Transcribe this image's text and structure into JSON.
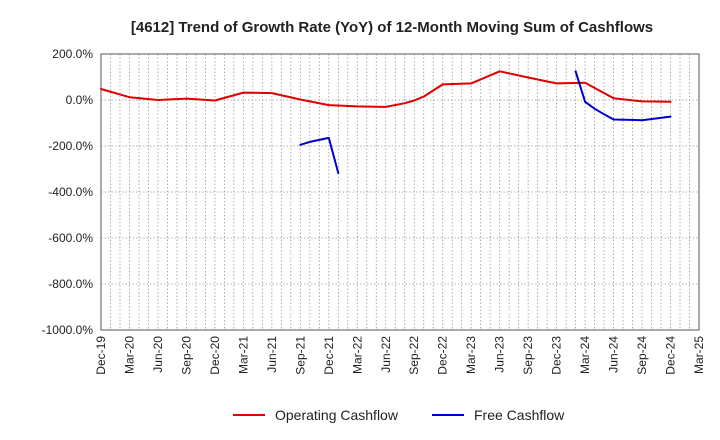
{
  "chart_data": {
    "type": "line",
    "title": "[4612]  Trend of Growth Rate (YoY) of 12-Month Moving Sum of Cashflows",
    "xlabel": "",
    "ylabel": "",
    "ylim": [
      -1000,
      200
    ],
    "yticks": [
      200,
      0,
      -200,
      -400,
      -600,
      -800,
      -1000
    ],
    "ytick_labels": [
      "200.0%",
      "0.0%",
      "-200.0%",
      "-400.0%",
      "-600.0%",
      "-800.0%",
      "-1000.0%"
    ],
    "x_categories": [
      "Dec-19",
      "Jan-20",
      "Feb-20",
      "Mar-20",
      "Apr-20",
      "May-20",
      "Jun-20",
      "Jul-20",
      "Aug-20",
      "Sep-20",
      "Oct-20",
      "Nov-20",
      "Dec-20",
      "Jan-21",
      "Feb-21",
      "Mar-21",
      "Apr-21",
      "May-21",
      "Jun-21",
      "Jul-21",
      "Aug-21",
      "Sep-21",
      "Oct-21",
      "Nov-21",
      "Dec-21",
      "Jan-22",
      "Feb-22",
      "Mar-22",
      "Apr-22",
      "May-22",
      "Jun-22",
      "Jul-22",
      "Aug-22",
      "Sep-22",
      "Oct-22",
      "Nov-22",
      "Dec-22",
      "Jan-23",
      "Feb-23",
      "Mar-23",
      "Apr-23",
      "May-23",
      "Jun-23",
      "Jul-23",
      "Aug-23",
      "Sep-23",
      "Oct-23",
      "Nov-23",
      "Dec-23",
      "Jan-24",
      "Feb-24",
      "Mar-24",
      "Apr-24",
      "May-24",
      "Jun-24",
      "Jul-24",
      "Aug-24",
      "Sep-24",
      "Oct-24",
      "Nov-24",
      "Dec-24",
      "Jan-25",
      "Feb-25",
      "Mar-25"
    ],
    "x_tick_labels": [
      "Dec-19",
      "Mar-20",
      "Jun-20",
      "Sep-20",
      "Dec-20",
      "Mar-21",
      "Jun-21",
      "Sep-21",
      "Dec-21",
      "Mar-22",
      "Jun-22",
      "Sep-22",
      "Dec-22",
      "Mar-23",
      "Jun-23",
      "Sep-23",
      "Dec-23",
      "Mar-24",
      "Jun-24",
      "Sep-24",
      "Dec-24",
      "Mar-25"
    ],
    "grid": true,
    "legend_position": "bottom-center",
    "series": [
      {
        "name": "Operating Cashflow",
        "color": "#e00000",
        "points": [
          [
            "Dec-19",
            48
          ],
          [
            "Mar-20",
            12
          ],
          [
            "Jun-20",
            0
          ],
          [
            "Sep-20",
            6
          ],
          [
            "Dec-20",
            -2
          ],
          [
            "Mar-21",
            32
          ],
          [
            "Jun-21",
            30
          ],
          [
            "Sep-21",
            2
          ],
          [
            "Dec-21",
            -22
          ],
          [
            "Mar-22",
            -28
          ],
          [
            "Jun-22",
            -30
          ],
          [
            "Aug-22",
            -14
          ],
          [
            "Sep-22",
            -2
          ],
          [
            "Oct-22",
            15
          ],
          [
            "Dec-22",
            68
          ],
          [
            "Mar-23",
            72
          ],
          [
            "Jun-23",
            125
          ],
          [
            "Sep-23",
            98
          ],
          [
            "Dec-23",
            72
          ],
          [
            "Mar-24",
            75
          ],
          [
            "Jun-24",
            8
          ],
          [
            "Sep-24",
            -6
          ],
          [
            "Dec-24",
            -8
          ]
        ]
      },
      {
        "name": "Free Cashflow",
        "color": "#0000cc",
        "points": [
          [
            "Sep-21",
            -195
          ],
          [
            "Oct-21",
            -182
          ],
          [
            "Dec-21",
            -165
          ],
          [
            "Jan-22",
            -318
          ]
        ]
      },
      {
        "name": "Free Cashflow",
        "color": "#0000cc",
        "points": [
          [
            "Feb-24",
            125
          ],
          [
            "Mar-24",
            -8
          ],
          [
            "Apr-24",
            -38
          ],
          [
            "May-24",
            -62
          ],
          [
            "Jun-24",
            -85
          ],
          [
            "Sep-24",
            -88
          ],
          [
            "Dec-24",
            -72
          ]
        ]
      }
    ],
    "legend": [
      {
        "name": "Operating Cashflow",
        "color": "#e00000"
      },
      {
        "name": "Free Cashflow",
        "color": "#0000cc"
      }
    ]
  }
}
